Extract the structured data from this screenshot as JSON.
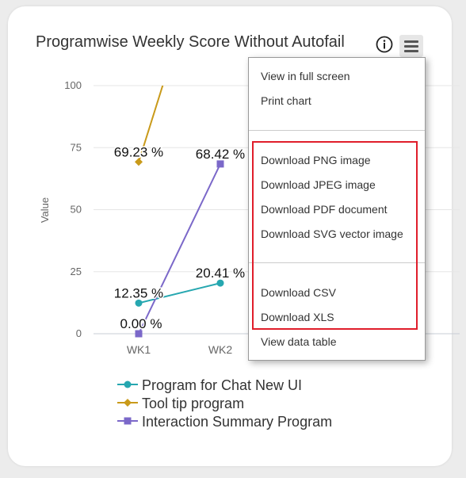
{
  "chart": {
    "title": "Programwise Weekly Score Without Autofail",
    "y_axis_label": "Value",
    "menu_button_icon": "hamburger-menu-icon",
    "info_icon": "info-icon"
  },
  "chart_data": {
    "type": "line",
    "title": "Programwise Weekly Score Without Autofail",
    "ylabel": "Value",
    "xlabel": "",
    "ylim": [
      0,
      100
    ],
    "yticks": [
      "0",
      "25",
      "50",
      "75",
      "100"
    ],
    "categories": [
      "WK1",
      "WK2"
    ],
    "series": [
      {
        "name": "Program for Chat New UI",
        "color": "#26a7b0",
        "marker": "circle",
        "values": [
          12.35,
          20.41
        ],
        "labels": [
          "12.35 %",
          "20.41 %"
        ]
      },
      {
        "name": "Tool tip program",
        "color": "#c99a1a",
        "marker": "diamond",
        "values": [
          69.23,
          null
        ],
        "labels": [
          "69.23 %",
          ""
        ]
      },
      {
        "name": "Interaction Summary Program",
        "color": "#7b68c9",
        "marker": "square",
        "values": [
          0.0,
          68.42
        ],
        "labels": [
          "0.00 %",
          "68.42 %"
        ]
      }
    ],
    "grid": true,
    "legend_position": "bottom"
  },
  "menu": {
    "items": [
      "View in full screen",
      "Print chart",
      "Download PNG image",
      "Download JPEG image",
      "Download PDF document",
      "Download SVG vector image",
      "Download CSV",
      "Download XLS",
      "View data table"
    ]
  },
  "colors": {
    "highlight": "#e01e2b",
    "series1": "#26a7b0",
    "series2": "#c99a1a",
    "series3": "#7b68c9"
  }
}
